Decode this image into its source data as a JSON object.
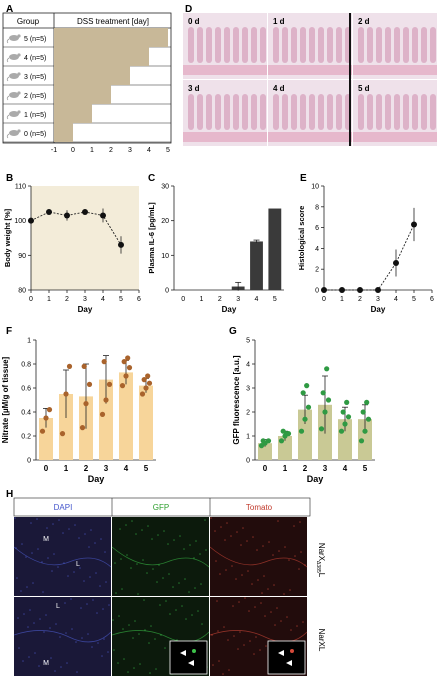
{
  "panel_letters": [
    "A",
    "B",
    "C",
    "D",
    "E",
    "F",
    "G",
    "H"
  ],
  "panelA": {
    "col_group": "Group",
    "col_treatment": "DSS treatment [day]",
    "rows": [
      "5 (n=5)",
      "4 (n=5)",
      "3 (n=5)",
      "2 (n=5)",
      "1 (n=5)",
      "0 (n=5)"
    ],
    "treatment_days": [
      5,
      4,
      3,
      2,
      1,
      0
    ],
    "axis_ticks": [
      "-1",
      "0",
      "1",
      "2",
      "3",
      "4",
      "5"
    ],
    "icon": "mouse-icon",
    "fill_color": "#c8b898"
  },
  "panelD": {
    "tile_labels": [
      "0 d",
      "1 d",
      "2 d",
      "3 d",
      "4 d",
      "5 d"
    ],
    "tissue_color": "#d9a9c2"
  },
  "chart_data": [
    {
      "id": "B",
      "type": "line",
      "xlabel": "Day",
      "ylabel": "Body weight [%]",
      "x": [
        0,
        1,
        2,
        3,
        4,
        5
      ],
      "values": [
        100,
        102.5,
        101.5,
        102.5,
        101.5,
        93
      ],
      "errors": [
        1.0,
        0.8,
        1.5,
        0.8,
        2.0,
        2.5
      ],
      "xlim": [
        0,
        6
      ],
      "ylim": [
        80,
        110
      ],
      "xticks": [
        0,
        1,
        2,
        3,
        4,
        5,
        6
      ],
      "yticks": [
        80,
        90,
        100,
        110
      ],
      "shaded_background": true
    },
    {
      "id": "C",
      "type": "bar",
      "xlabel": "Day",
      "ylabel": "Plasma IL-6 [pg/mL]",
      "categories": [
        "0",
        "1",
        "2",
        "3",
        "4",
        "5"
      ],
      "values": [
        0,
        0,
        0,
        1,
        14,
        23.5
      ],
      "errors": [
        0,
        0,
        0,
        1.2,
        0.4,
        0
      ],
      "ylim": [
        0,
        30
      ],
      "yticks": [
        0,
        10,
        20,
        30
      ],
      "bar_color": "#3a3a3a"
    },
    {
      "id": "E",
      "type": "line",
      "xlabel": "Day",
      "ylabel": "Histological score",
      "x": [
        0,
        1,
        2,
        3,
        4,
        5
      ],
      "values": [
        0,
        0,
        0,
        0,
        2.6,
        6.3
      ],
      "errors": [
        0,
        0,
        0,
        0,
        1.3,
        1.6
      ],
      "xlim": [
        0,
        6
      ],
      "ylim": [
        0,
        10
      ],
      "xticks": [
        0,
        1,
        2,
        3,
        4,
        5,
        6
      ],
      "yticks": [
        0,
        2,
        4,
        6,
        8,
        10
      ]
    },
    {
      "id": "F",
      "type": "bar",
      "xlabel": "Day",
      "ylabel": "Nitrate [µM/g of tissue]",
      "categories": [
        "0",
        "1",
        "2",
        "3",
        "4",
        "5"
      ],
      "values": [
        0.35,
        0.55,
        0.53,
        0.67,
        0.73,
        0.62
      ],
      "errors": [
        0.08,
        0.2,
        0.27,
        0.2,
        0.1,
        0.06
      ],
      "points": [
        [
          0.24,
          0.35,
          0.42
        ],
        [
          0.22,
          0.55,
          0.78
        ],
        [
          0.27,
          0.47,
          0.63,
          0.78
        ],
        [
          0.38,
          0.5,
          0.63,
          0.82
        ],
        [
          0.62,
          0.7,
          0.77,
          0.82,
          0.85
        ],
        [
          0.55,
          0.6,
          0.64,
          0.67,
          0.7
        ]
      ],
      "ylim": [
        0,
        1
      ],
      "yticks": [
        0,
        0.2,
        0.4,
        0.6,
        0.8,
        1
      ],
      "bar_color": "#f7d59a",
      "point_color": "#a9632c"
    },
    {
      "id": "G",
      "type": "bar",
      "xlabel": "Day",
      "ylabel": "GFP fluorescence [a.u.]",
      "categories": [
        "0",
        "1",
        "2",
        "3",
        "4",
        "5"
      ],
      "values": [
        0.7,
        1.0,
        2.1,
        2.3,
        1.7,
        1.7
      ],
      "errors": [
        0.15,
        0.2,
        0.6,
        1.2,
        0.5,
        0.6
      ],
      "points": [
        [
          0.6,
          0.7,
          0.8,
          0.8
        ],
        [
          0.8,
          1.0,
          1.1,
          1.2,
          1.1
        ],
        [
          1.2,
          1.7,
          2.2,
          2.8,
          3.1
        ],
        [
          1.3,
          2.0,
          2.5,
          2.8,
          3.8
        ],
        [
          1.2,
          1.5,
          1.8,
          2.0,
          2.4
        ],
        [
          0.8,
          1.2,
          1.7,
          2.0,
          2.4
        ]
      ],
      "ylim": [
        0,
        5
      ],
      "yticks": [
        0,
        1,
        2,
        3,
        4,
        5
      ],
      "bar_color": "#c9c995",
      "point_color": "#2f9a43"
    }
  ],
  "panelH": {
    "columns": [
      "DAPI",
      "GFP",
      "Tomato"
    ],
    "column_colors": [
      "#4455cc",
      "#2fa02f",
      "#c0392b"
    ],
    "row_labels": [
      "NarX",
      "NarXL"
    ],
    "row1_subscript": "Δ385",
    "row1_suffix": "L",
    "tissue_labels": [
      "M",
      "L",
      "L",
      "M"
    ]
  }
}
